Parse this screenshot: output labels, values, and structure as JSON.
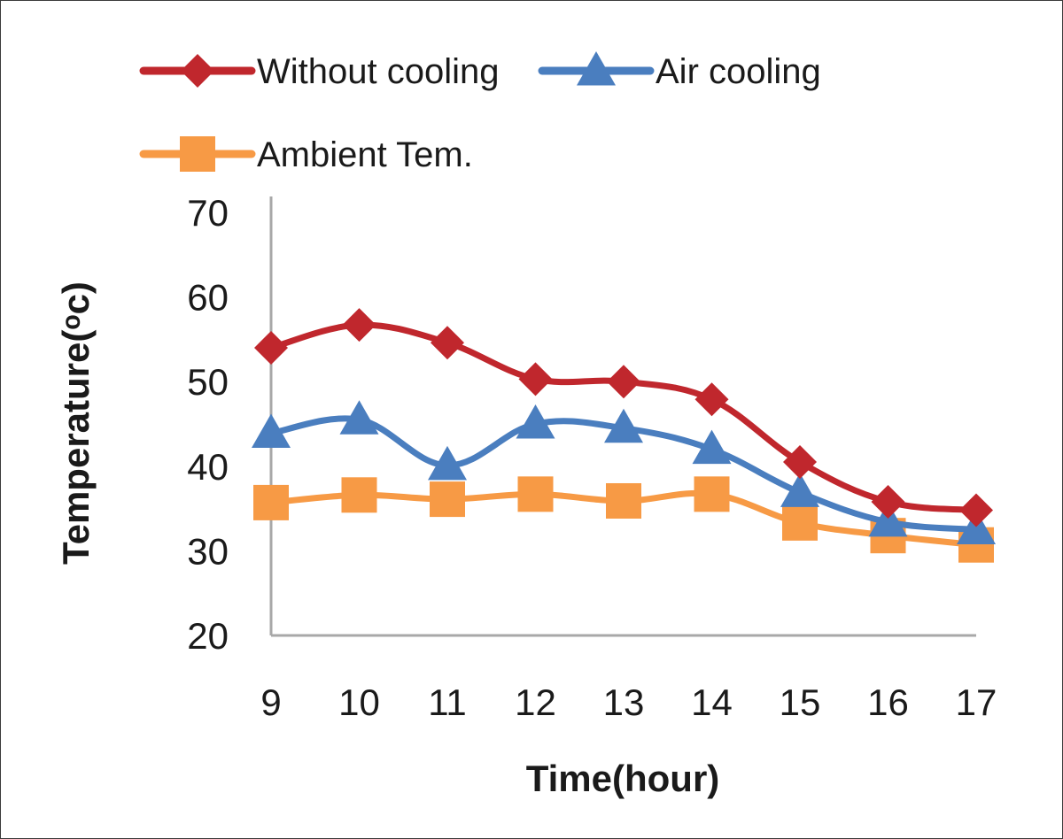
{
  "chart_data": {
    "type": "line",
    "title": "",
    "xlabel": "Time(hour)",
    "ylabel": "Temperature(ᵒc)",
    "categories": [
      "9",
      "10",
      "11",
      "12",
      "13",
      "14",
      "15",
      "16",
      "17"
    ],
    "x": [
      9,
      10,
      11,
      12,
      13,
      14,
      15,
      16,
      17
    ],
    "ylim": [
      20,
      70
    ],
    "yticks": [
      "70",
      "60",
      "50",
      "40",
      "30",
      "20"
    ],
    "grid": false,
    "legend_position": "top",
    "series": [
      {
        "name": "Without cooling",
        "values": [
          54,
          56.7,
          54.6,
          50.3,
          50,
          47.9,
          40.5,
          35.8,
          34.8
        ],
        "color": "#c0272d",
        "marker": "diamond"
      },
      {
        "name": "Air cooling",
        "values": [
          43.9,
          45.5,
          40.1,
          45,
          44.5,
          42,
          36.9,
          33.4,
          32.5
        ],
        "color": "#4a7ebf",
        "marker": "triangle"
      },
      {
        "name": "Ambient Tem.",
        "values": [
          35.7,
          36.6,
          36.1,
          36.7,
          35.9,
          36.7,
          33.3,
          31.8,
          30.7
        ],
        "color": "#f79a45",
        "marker": "square"
      }
    ]
  }
}
